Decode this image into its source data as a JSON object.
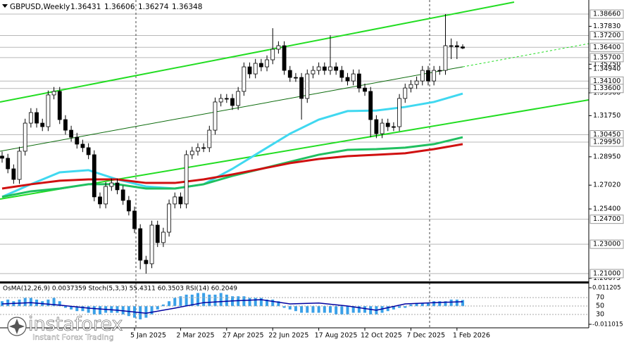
{
  "chart_data": [
    {
      "type": "candlestick",
      "title": "GBPUSD,Weekly",
      "categories": [
        null,
        null,
        null,
        null,
        null,
        null,
        null,
        null,
        null,
        null,
        null,
        null,
        null,
        null,
        null,
        null,
        null,
        null,
        null,
        null,
        null,
        null,
        null,
        "5 Jan 2025",
        null,
        null,
        null,
        null,
        null,
        null,
        null,
        "2 Mar 2025",
        null,
        null,
        null,
        null,
        null,
        null,
        null,
        "27 Apr 2025",
        null,
        null,
        null,
        null,
        null,
        null,
        null,
        "22 Jun 2025",
        null,
        null,
        null,
        null,
        null,
        null,
        null,
        "17 Aug 2025",
        null,
        null,
        null,
        null,
        null,
        null,
        null,
        "12 Oct 2025",
        null,
        null,
        null,
        null,
        null,
        null,
        null,
        "7 Dec 2025",
        null,
        null,
        null,
        null,
        null,
        null,
        null,
        "1 Feb 2026",
        null
      ],
      "open": [
        1.29,
        1.2885,
        1.2813,
        1.2741,
        1.2933,
        1.3124,
        1.3196,
        1.3124,
        1.31,
        1.3316,
        1.334,
        1.3148,
        1.3076,
        1.3028,
        1.2981,
        1.2957,
        1.2909,
        1.2622,
        1.2574,
        1.2693,
        1.2717,
        1.267,
        1.2598,
        1.2526,
        1.2406,
        1.2191,
        1.2167,
        1.243,
        1.2311,
        1.2382,
        1.2574,
        1.2622,
        1.2574,
        1.2909,
        1.2933,
        1.2957,
        1.2957,
        1.3076,
        1.3268,
        1.3292,
        1.3292,
        1.3244,
        1.334,
        1.3507,
        1.3459,
        1.3531,
        1.3507,
        1.3555,
        1.3627,
        1.3651,
        1.3483,
        1.3435,
        1.3435,
        1.3292,
        1.3459,
        1.3483,
        1.3507,
        1.3483,
        1.3507,
        1.3483,
        1.3435,
        1.3411,
        1.3459,
        1.3363,
        1.334,
        1.3148,
        1.3052,
        1.3124,
        1.31,
        1.31,
        1.3292,
        1.3363,
        1.3387,
        1.3411,
        1.3483,
        1.3411,
        1.3483,
        1.3483,
        1.3651,
        1.3651,
        1.36431
      ],
      "high": [
        1.293,
        1.2915,
        1.2843,
        1.2963,
        1.3154,
        1.3226,
        1.3226,
        1.3154,
        1.3346,
        1.337,
        1.337,
        1.3178,
        1.3106,
        1.3058,
        1.3011,
        1.2987,
        1.2939,
        1.2652,
        1.2723,
        1.2747,
        1.2747,
        1.27,
        1.2628,
        1.2556,
        1.2436,
        1.2221,
        1.246,
        1.246,
        1.2412,
        1.2604,
        1.2652,
        1.2652,
        1.2939,
        1.2963,
        1.2987,
        1.2987,
        1.3106,
        1.3298,
        1.3322,
        1.3322,
        1.3322,
        1.337,
        1.3537,
        1.3537,
        1.3561,
        1.3561,
        1.3585,
        1.377,
        1.3681,
        1.3681,
        1.3513,
        1.3465,
        1.3465,
        1.3489,
        1.3513,
        1.3537,
        1.3537,
        1.3722,
        1.3537,
        1.3513,
        1.3465,
        1.3489,
        1.3489,
        1.3393,
        1.337,
        1.3178,
        1.3154,
        1.3154,
        1.313,
        1.3322,
        1.3393,
        1.3417,
        1.3441,
        1.3513,
        1.3513,
        1.3513,
        1.3513,
        1.3866,
        1.37,
        1.3681,
        1.36606
      ],
      "low": [
        1.2855,
        1.2783,
        1.2711,
        1.2711,
        1.2903,
        1.3094,
        1.3094,
        1.307,
        1.307,
        1.3286,
        1.3118,
        1.3046,
        1.2998,
        1.2951,
        1.2927,
        1.2879,
        1.2592,
        1.2544,
        1.2544,
        1.2663,
        1.264,
        1.2568,
        1.2496,
        1.2376,
        1.213,
        1.21,
        1.2137,
        1.2281,
        1.2281,
        1.2352,
        1.2544,
        1.2544,
        1.2544,
        1.2879,
        1.2903,
        1.2927,
        1.2927,
        1.3046,
        1.3238,
        1.3262,
        1.3214,
        1.3214,
        1.331,
        1.3429,
        1.3429,
        1.3477,
        1.3477,
        1.3525,
        1.3597,
        1.3453,
        1.3405,
        1.3405,
        1.3148,
        1.3262,
        1.3429,
        1.3453,
        1.3453,
        1.3453,
        1.3453,
        1.3405,
        1.3381,
        1.3381,
        1.3333,
        1.331,
        1.3028,
        1.3022,
        1.3022,
        1.307,
        1.307,
        1.307,
        1.3262,
        1.3333,
        1.3357,
        1.3381,
        1.3381,
        1.3381,
        1.3453,
        1.3453,
        1.356,
        1.356,
        1.36274
      ],
      "close": [
        1.2885,
        1.2813,
        1.2741,
        1.2933,
        1.3124,
        1.3196,
        1.3124,
        1.31,
        1.3316,
        1.334,
        1.3148,
        1.3076,
        1.3028,
        1.2981,
        1.2957,
        1.2909,
        1.2622,
        1.2574,
        1.2693,
        1.2717,
        1.267,
        1.2598,
        1.2526,
        1.2406,
        1.2191,
        1.2167,
        1.243,
        1.2311,
        1.2382,
        1.2574,
        1.2622,
        1.2574,
        1.2909,
        1.2933,
        1.2957,
        1.2957,
        1.3076,
        1.3268,
        1.3292,
        1.3292,
        1.3244,
        1.334,
        1.3507,
        1.3459,
        1.3531,
        1.3507,
        1.3555,
        1.3627,
        1.3651,
        1.3483,
        1.3435,
        1.3435,
        1.3292,
        1.3459,
        1.3483,
        1.3507,
        1.3483,
        1.3507,
        1.3483,
        1.3435,
        1.3411,
        1.3459,
        1.3363,
        1.334,
        1.3148,
        1.3052,
        1.3124,
        1.31,
        1.31,
        1.3292,
        1.3363,
        1.3387,
        1.3411,
        1.3483,
        1.3411,
        1.3483,
        1.3483,
        1.3651,
        1.3651,
        1.36431,
        1.36348
      ],
      "series": [
        {
          "color": "#40d8f0",
          "x": [
            0,
            5,
            10,
            15,
            20,
            25,
            30,
            35,
            40,
            45,
            50,
            55,
            60,
            65,
            70,
            75,
            80
          ],
          "values": [
            1.2622,
            1.2708,
            1.2789,
            1.2804,
            1.2741,
            1.2693,
            1.2679,
            1.2708,
            1.2813,
            1.2933,
            1.3052,
            1.3148,
            1.3206,
            1.321,
            1.3234,
            1.3268,
            1.3325
          ]
        },
        {
          "color": "#20c060",
          "x": [
            0,
            5,
            10,
            15,
            20,
            25,
            30,
            35,
            40,
            45,
            50,
            55,
            60,
            65,
            70,
            75,
            80
          ],
          "values": [
            1.2622,
            1.266,
            1.2679,
            1.2708,
            1.2708,
            1.2679,
            1.2679,
            1.2708,
            1.2765,
            1.2813,
            1.2861,
            1.2909,
            1.2942,
            1.2947,
            1.2957,
            1.2981,
            1.3028
          ]
        },
        {
          "color": "#d01010",
          "x": [
            0,
            5,
            10,
            15,
            20,
            25,
            30,
            35,
            40,
            45,
            50,
            55,
            60,
            65,
            70,
            75,
            80
          ],
          "values": [
            1.2679,
            1.2708,
            1.2732,
            1.2741,
            1.2741,
            1.2717,
            1.2717,
            1.2741,
            1.2775,
            1.2813,
            1.2852,
            1.288,
            1.2899,
            1.2909,
            1.2919,
            1.2947,
            1.2981
          ]
        }
      ],
      "ylim": [
        1.2047,
        1.3962
      ],
      "yticks": [
        {
          "value": 1.3783,
          "label": "1.37830"
        },
        {
          "value": 1.3525,
          "label": "1.35250"
        },
        {
          "value": 1.3494,
          "label": "1.34940"
        },
        {
          "value": 1.333,
          "label": "1.33300"
        },
        {
          "value": 1.3175,
          "label": "1.31750"
        },
        {
          "value": 1.2895,
          "label": "1.28950"
        },
        {
          "value": 1.2702,
          "label": "1.27020"
        },
        {
          "value": 1.254,
          "label": "1.25400"
        },
        {
          "value": 1.20675,
          "label": "1.20675"
        }
      ],
      "levels": [
        {
          "value": 1.3866,
          "label": "1.38660"
        },
        {
          "value": 1.372,
          "label": "1.37200"
        },
        {
          "value": 1.364,
          "label": "1.36400"
        },
        {
          "value": 1.357,
          "label": "1.35700"
        },
        {
          "value": 1.341,
          "label": "1.34100"
        },
        {
          "value": 1.336,
          "label": "1.33600"
        },
        {
          "value": 1.3045,
          "label": "1.30450"
        },
        {
          "value": 1.2995,
          "label": "1.29950"
        },
        {
          "value": 1.247,
          "label": "1.24700"
        },
        {
          "value": 1.23,
          "label": "1.23000"
        },
        {
          "value": 1.21,
          "label": "1.21000"
        }
      ]
    },
    {
      "type": "oscillator",
      "title": "OsMA(12,26,9) 0.0037359  Stoch(5,3,3) 55.4311 60.3503  RSI(14) 60.2049",
      "color": "#3aa0e8",
      "values": [
        0.003,
        0.004,
        0.003,
        0.004,
        0.005,
        0.005,
        0.004,
        0.003,
        0.004,
        0.005,
        0.003,
        -0.001,
        -0.002,
        -0.003,
        -0.003,
        -0.004,
        -0.005,
        -0.005,
        -0.004,
        -0.004,
        -0.004,
        -0.005,
        -0.006,
        -0.007,
        -0.008,
        -0.007,
        -0.005,
        -0.002,
        0.001,
        0.003,
        0.005,
        0.006,
        0.007,
        0.007,
        0.008,
        0.008,
        0.007,
        0.007,
        0.008,
        0.007,
        0.006,
        0.006,
        0.006,
        0.005,
        0.005,
        0.005,
        0.004,
        0.004,
        0.003,
        -0.001,
        -0.002,
        -0.003,
        -0.004,
        -0.004,
        -0.004,
        -0.004,
        -0.004,
        -0.004,
        -0.005,
        -0.005,
        -0.005,
        -0.004,
        -0.004,
        -0.004,
        -0.005,
        -0.005,
        -0.004,
        -0.003,
        -0.002,
        -0.001,
        -0.001,
        0.001,
        0.002,
        0.002,
        0.002,
        0.003,
        0.003,
        0.003,
        0.004,
        0.004,
        0.0037359
      ],
      "ylim": [
        -0.011015,
        0.011205
      ],
      "yticks": [
        0.011205,
        -0.011015
      ],
      "series": [
        {
          "color": "#0000a0",
          "axis": "y2",
          "x": [
            0,
            5,
            10,
            15,
            20,
            25,
            30,
            35,
            40,
            45,
            50,
            55,
            60,
            65,
            70,
            75,
            80
          ],
          "values": [
            55,
            58,
            52,
            45,
            40,
            33,
            45,
            58,
            62,
            65,
            55,
            57,
            50,
            40,
            55,
            58,
            60.2049
          ]
        }
      ],
      "y2lim": [
        0,
        100
      ],
      "y2ticks": [
        30,
        50,
        70
      ]
    }
  ],
  "watermark": {
    "brand": "instaforex",
    "tagline": "Instant Forex Trading"
  }
}
